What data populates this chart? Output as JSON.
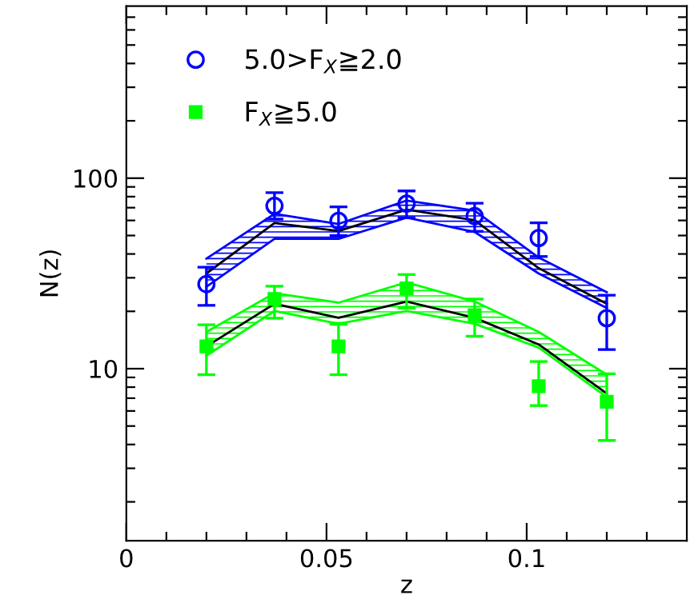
{
  "chart_data": {
    "type": "scatter",
    "xlabel": "z",
    "ylabel": "N(z)",
    "log": "y",
    "legend": "top left",
    "xlim": [
      0,
      0.14
    ],
    "ylim": [
      1.25,
      800
    ],
    "xticks": [
      0,
      {
        "value": 0.01,
        "label": null
      },
      {
        "value": 0.02,
        "label": null
      },
      {
        "value": 0.03,
        "label": null
      },
      {
        "value": 0.04,
        "label": null
      },
      0.05,
      {
        "value": 0.06,
        "label": null
      },
      {
        "value": 0.07,
        "label": null
      },
      {
        "value": 0.08,
        "label": null
      },
      {
        "value": 0.09,
        "label": null
      },
      0.1,
      {
        "value": 0.11,
        "label": null
      },
      {
        "value": 0.12,
        "label": null
      },
      {
        "value": 0.13,
        "label": null
      }
    ],
    "yticks": [
      {
        "value": 2,
        "label": null
      },
      {
        "value": 3,
        "label": null
      },
      {
        "value": 4,
        "label": null
      },
      {
        "value": 5,
        "label": null
      },
      {
        "value": 6,
        "label": null
      },
      {
        "value": 7,
        "label": null
      },
      {
        "value": 8,
        "label": null
      },
      {
        "value": 9,
        "label": null
      },
      10,
      {
        "value": 20,
        "label": null
      },
      {
        "value": 30,
        "label": null
      },
      {
        "value": 40,
        "label": null
      },
      {
        "value": 50,
        "label": null
      },
      {
        "value": 60,
        "label": null
      },
      {
        "value": 70,
        "label": null
      },
      {
        "value": 80,
        "label": null
      },
      {
        "value": 90,
        "label": null
      },
      100,
      {
        "value": 200,
        "label": null
      },
      {
        "value": 300,
        "label": null
      },
      {
        "value": 400,
        "label": null
      },
      {
        "value": 500,
        "label": null
      },
      {
        "value": 600,
        "label": null
      },
      {
        "value": 700,
        "label": null
      }
    ],
    "x": [
      0.02,
      0.037,
      0.053,
      0.07,
      0.087,
      0.103,
      0.12
    ],
    "series": [
      {
        "type": "line",
        "color": "#0000ff",
        "values": [
          37.8,
          65.0,
          57.5,
          76.3,
          67.6,
          38.3,
          25.2
        ]
      },
      {
        "type": "line",
        "color": "#0000ff",
        "values": [
          26.9,
          48.0,
          48.0,
          62.1,
          52.2,
          31.6,
          20.8
        ]
      },
      {
        "type": "line",
        "color": "#000000",
        "values": [
          31.6,
          58.2,
          52.8,
          68.4,
          60.1,
          33.7,
          21.9
        ]
      },
      {
        "type": "line",
        "color": "#00ff00",
        "values": [
          15.6,
          24.9,
          22.2,
          28.4,
          22.5,
          15.6,
          9.3
        ]
      },
      {
        "type": "line",
        "color": "#00ff00",
        "values": [
          11.7,
          20.1,
          17.2,
          20.1,
          17.2,
          12.9,
          7.1
        ]
      },
      {
        "type": "line",
        "color": "#000000",
        "values": [
          13.1,
          21.9,
          18.5,
          22.5,
          18.5,
          13.4,
          7.4
        ]
      },
      {
        "name": "5.0>F$_{X}$≧2.0",
        "color": "#0000ff",
        "marker": "circle",
        "values": [
          27.8,
          71.6,
          59.7,
          73.5,
          63.2,
          48.5,
          18.4
        ],
        "errors": [
          [
            21.5,
            34.1
          ],
          [
            61,
            84
          ],
          [
            50,
            70.7
          ],
          [
            62,
            85.7
          ],
          [
            52.6,
            73.9
          ],
          [
            38.8,
            58.3
          ],
          [
            12.6,
            24.3
          ]
        ]
      },
      {
        "name": "F$_{X}$≧5.0",
        "color": "#00ff00",
        "marker": "square",
        "values": [
          13.1,
          23.2,
          13.1,
          26.4,
          19.1,
          8.1,
          6.7
        ],
        "errors": [
          [
            9.3,
            17
          ],
          [
            18.4,
            27.1
          ],
          [
            9.3,
            17.1
          ],
          [
            20.8,
            31.2
          ],
          [
            14.8,
            23.2
          ],
          [
            6.4,
            10.9
          ],
          [
            4.2,
            9.4
          ]
        ]
      }
    ]
  }
}
